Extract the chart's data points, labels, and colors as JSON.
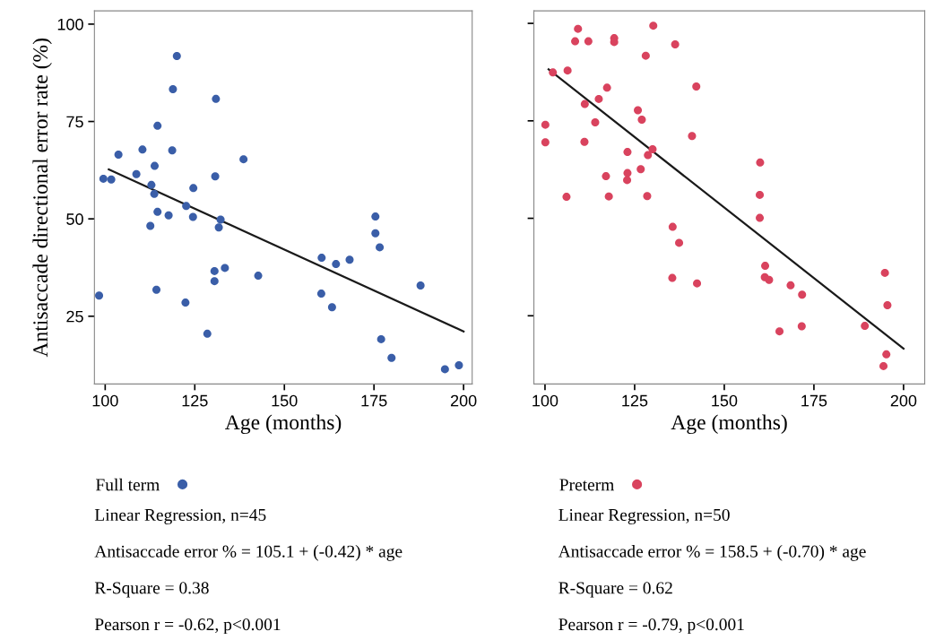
{
  "chart_data": [
    {
      "type": "scatter",
      "xlabel": "Age (months)",
      "ylabel": "Antisaccade directional error rate (%)",
      "xlim": [
        97,
        202.4
      ],
      "ylim": [
        7.6,
        103.4
      ],
      "xticks": [
        100,
        125,
        150,
        175,
        200
      ],
      "yticks": [
        25,
        50,
        75,
        100
      ],
      "grid": false,
      "legend": "bottom",
      "marker": "circle",
      "annotations": [
        "Linear Regression, n=45",
        "Antisaccade error % = 105.1 + (-0.42) * age",
        "R-Square = 0.38",
        "Pearson r = -0.62, p<0.001"
      ],
      "series": [
        {
          "name": "Full term",
          "color": "#3a5ea8",
          "x": [
            98.3,
            99.5,
            101.7,
            103.7,
            108.7,
            110.4,
            113.8,
            112.9,
            113.7,
            114.6,
            114.6,
            112.6,
            114.3,
            117.7,
            118.7,
            118.9,
            120.0,
            122.6,
            124.6,
            124.5,
            122.4,
            128.5,
            130.7,
            130.9,
            132.2,
            131.7,
            130.5,
            130.5,
            133.4,
            138.6,
            142.7,
            160.4,
            160.3,
            163.3,
            164.4,
            168.2,
            175.4,
            175.4,
            176.6,
            177.0,
            179.9,
            188.0,
            194.8,
            198.7
          ],
          "values": [
            30.3,
            60.3,
            60.1,
            66.5,
            61.5,
            67.8,
            63.6,
            58.7,
            56.4,
            73.9,
            51.8,
            48.2,
            31.8,
            50.9,
            67.6,
            83.3,
            91.8,
            53.3,
            57.9,
            50.5,
            28.5,
            20.5,
            60.9,
            80.8,
            49.8,
            47.8,
            36.6,
            34.0,
            37.4,
            65.3,
            35.4,
            40.0,
            30.8,
            27.3,
            38.4,
            39.5,
            50.6,
            46.3,
            42.7,
            19.1,
            14.3,
            32.9,
            11.4,
            12.4
          ]
        },
        {
          "type": "line",
          "marker": "none",
          "color": "#1a1a1a",
          "x": [
            101,
            200
          ],
          "values": [
            62.7,
            21.1
          ]
        }
      ]
    },
    {
      "type": "scatter",
      "xlabel": "Age (months)",
      "xlim": [
        96.9,
        205.9
      ],
      "ylim": [
        7.5,
        103.2
      ],
      "xticks": [
        100,
        125,
        150,
        175,
        200
      ],
      "yticks": [
        25,
        50,
        75,
        100
      ],
      "tick_labels": "x",
      "grid": false,
      "legend": "bottom",
      "marker": "circle",
      "annotations": [
        "Linear Regression, n=50",
        "Antisaccade error % = 158.5 + (-0.70) * age",
        "R-Square = 0.62",
        "Pearson r = -0.79, p<0.001"
      ],
      "series": [
        {
          "name": "Preterm",
          "color": "#d9435e",
          "x": [
            100.1,
            100.1,
            102.2,
            106.3,
            106.0,
            109.2,
            108.4,
            112.1,
            111.1,
            111.0,
            114.0,
            115.0,
            117.3,
            117.0,
            117.8,
            119.3,
            119.3,
            123.0,
            123.0,
            122.9,
            125.9,
            127.0,
            126.7,
            128.1,
            128.7,
            130.0,
            128.5,
            130.2,
            136.3,
            135.6,
            137.4,
            135.5,
            141.0,
            142.2,
            142.4,
            160.0,
            159.9,
            159.9,
            161.4,
            161.3,
            162.5,
            168.5,
            171.7,
            165.4,
            171.6,
            189.2,
            194.8,
            195.5,
            195.2,
            194.4
          ],
          "values": [
            74.0,
            69.5,
            87.4,
            87.9,
            55.5,
            98.6,
            95.4,
            95.4,
            79.3,
            69.6,
            74.6,
            80.6,
            83.5,
            60.8,
            55.6,
            96.2,
            95.2,
            67.0,
            61.6,
            59.8,
            77.7,
            75.3,
            62.6,
            91.7,
            66.2,
            67.7,
            55.7,
            99.4,
            94.6,
            47.8,
            43.7,
            34.7,
            71.1,
            83.8,
            33.3,
            64.3,
            56.0,
            50.1,
            37.8,
            34.9,
            34.2,
            32.8,
            30.4,
            21.0,
            22.3,
            22.4,
            36.0,
            27.7,
            15.1,
            12.1
          ]
        },
        {
          "type": "line",
          "marker": "none",
          "color": "#1a1a1a",
          "x": [
            101,
            200
          ],
          "values": [
            88.2,
            16.6
          ]
        }
      ]
    }
  ]
}
